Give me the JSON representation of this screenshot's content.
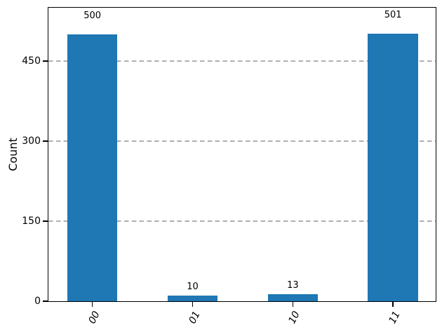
{
  "chart_data": {
    "type": "bar",
    "categories": [
      "00",
      "01",
      "10",
      "11"
    ],
    "values": [
      500,
      10,
      13,
      501
    ],
    "value_labels": [
      "500",
      "10",
      "13",
      "501"
    ],
    "title": "",
    "xlabel": "",
    "ylabel": "Count",
    "yticks": [
      0,
      150,
      300,
      450
    ],
    "ylim": [
      0,
      550
    ],
    "grid": "horizontal dashed lines at y-ticks, behind bars",
    "legend": "none",
    "bar_color": "#1f77b4",
    "grid_color": "#b0b0b0",
    "axis_color": "#000000",
    "text_color": "#000000",
    "xtick_style": "italic, rotated counterclockwise"
  }
}
